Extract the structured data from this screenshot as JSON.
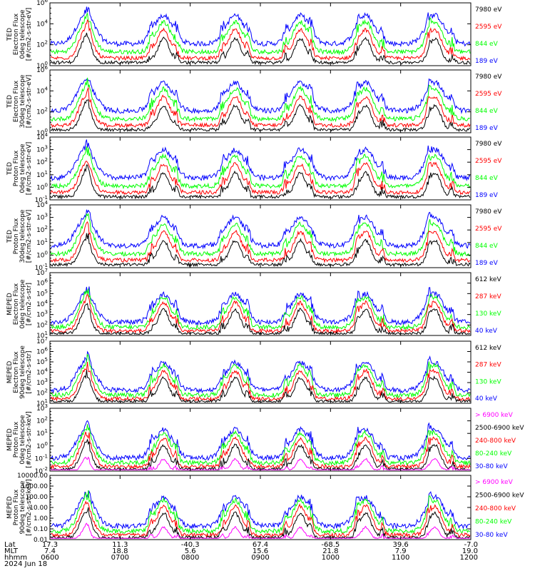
{
  "colors": {
    "blue": "#0000ff",
    "red": "#ff0000",
    "green": "#00ff00",
    "black": "#000000",
    "magenta": "#ff00ff",
    "frame": "#000000"
  },
  "chart_data": [
    {
      "type": "line",
      "ylabel_lines": [
        "TED",
        "Electron Flux",
        "0deg telescope",
        "[#/cm2-s-str-eV]"
      ],
      "yscale": "log",
      "yticks": [
        "10^0",
        "10^2",
        "10^4",
        "10^6"
      ],
      "ylim": [
        1,
        1000000
      ],
      "series": [
        {
          "name": "7980 eV",
          "color": "black"
        },
        {
          "name": "2595 eV",
          "color": "red"
        },
        {
          "name": "844 eV",
          "color": "green"
        },
        {
          "name": "189 eV",
          "color": "blue"
        }
      ]
    },
    {
      "type": "line",
      "ylabel_lines": [
        "TED",
        "Electron Flux",
        "30deg telescope",
        "[#/cm2-s-str-eV]"
      ],
      "yscale": "log",
      "yticks": [
        "10^0",
        "10^2",
        "10^4",
        "10^6"
      ],
      "ylim": [
        1,
        1000000
      ],
      "series": [
        {
          "name": "7980 eV",
          "color": "black"
        },
        {
          "name": "2595 eV",
          "color": "red"
        },
        {
          "name": "844 eV",
          "color": "green"
        },
        {
          "name": "189 eV",
          "color": "blue"
        }
      ]
    },
    {
      "type": "line",
      "ylabel_lines": [
        "TED",
        "Proton Flux",
        "0deg telescope",
        "[#/cm2-s-str-eV]"
      ],
      "yscale": "log",
      "yticks": [
        "10^-1",
        "10^0",
        "10^1",
        "10^2",
        "10^3",
        "10^4"
      ],
      "ylim": [
        0.1,
        10000
      ],
      "series": [
        {
          "name": "7980 eV",
          "color": "black"
        },
        {
          "name": "2595 eV",
          "color": "red"
        },
        {
          "name": "844 eV",
          "color": "green"
        },
        {
          "name": "189 eV",
          "color": "blue"
        }
      ]
    },
    {
      "type": "line",
      "ylabel_lines": [
        "TED",
        "Proton Flux",
        "30deg telescope",
        "[#/cm2-s-str-eV]"
      ],
      "yscale": "log",
      "yticks": [
        "10^-1",
        "10^0",
        "10^1",
        "10^2",
        "10^3",
        "10^4"
      ],
      "ylim": [
        0.1,
        10000
      ],
      "series": [
        {
          "name": "7980 eV",
          "color": "black"
        },
        {
          "name": "2595 eV",
          "color": "red"
        },
        {
          "name": "844 eV",
          "color": "green"
        },
        {
          "name": "189 eV",
          "color": "blue"
        }
      ]
    },
    {
      "type": "line",
      "ylabel_lines": [
        "MEPED",
        "Electron Flux",
        "0deg telescope",
        "[#/cm2-s-str]"
      ],
      "yscale": "log",
      "yticks": [
        "10^1",
        "10^2",
        "10^3",
        "10^4",
        "10^5",
        "10^6",
        "10^7"
      ],
      "ylim": [
        10,
        10000000
      ],
      "series": [
        {
          "name": "612 keV",
          "color": "black"
        },
        {
          "name": "287 keV",
          "color": "red"
        },
        {
          "name": "130 keV",
          "color": "green"
        },
        {
          "name": "40 keV",
          "color": "blue"
        }
      ]
    },
    {
      "type": "line",
      "ylabel_lines": [
        "MEPED",
        "Electron Flux",
        "90deg telescope",
        "[#/cm2-s-str]"
      ],
      "yscale": "log",
      "yticks": [
        "10^1",
        "10^2",
        "10^3",
        "10^4",
        "10^5",
        "10^6",
        "10^7"
      ],
      "ylim": [
        10,
        10000000
      ],
      "series": [
        {
          "name": "612 keV",
          "color": "black"
        },
        {
          "name": "287 keV",
          "color": "red"
        },
        {
          "name": "130 keV",
          "color": "green"
        },
        {
          "name": "40 keV",
          "color": "blue"
        }
      ]
    },
    {
      "type": "line",
      "ylabel_lines": [
        "MEPED",
        "Proton Flux",
        "0deg telescope",
        "[#/cm2-s-str-keV]"
      ],
      "yscale": "log",
      "yticks": [
        "10^-2",
        "10^-1",
        "10^0",
        "10^1",
        "10^2",
        "10^3"
      ],
      "ylim": [
        0.01,
        1000
      ],
      "series": [
        {
          "name": "> 6900 keV",
          "color": "magenta"
        },
        {
          "name": "2500-6900 keV",
          "color": "black"
        },
        {
          "name": "240-800 keV",
          "color": "red"
        },
        {
          "name": "80-240 keV",
          "color": "green"
        },
        {
          "name": "30-80 keV",
          "color": "blue"
        }
      ]
    },
    {
      "type": "line",
      "ylabel_lines": [
        "MEPED",
        "Proton Flux",
        "90deg telescope",
        "[#/cm2-s-str-keV]"
      ],
      "yscale": "log",
      "yticks": [
        "0.01",
        "0.10",
        "1.00",
        "10.00",
        "100.00",
        "1000.00",
        "10000.00"
      ],
      "ylim": [
        0.01,
        10000
      ],
      "series": [
        {
          "name": "> 6900 keV",
          "color": "magenta"
        },
        {
          "name": "2500-6900 keV",
          "color": "black"
        },
        {
          "name": "240-800 keV",
          "color": "red"
        },
        {
          "name": "80-240 keV",
          "color": "green"
        },
        {
          "name": "30-80 keV",
          "color": "blue"
        }
      ]
    }
  ],
  "x_axis": {
    "row_labels": [
      "Lat",
      "MLT",
      "hhmm",
      "2024 Jun 18"
    ],
    "ticks": [
      {
        "lat": "17.3",
        "mlt": "7.4",
        "hhmm": "0600"
      },
      {
        "lat": "11.3",
        "mlt": "18.8",
        "hhmm": "0700"
      },
      {
        "lat": "-40.3",
        "mlt": "5.6",
        "hhmm": "0800"
      },
      {
        "lat": "67.4",
        "mlt": "15.6",
        "hhmm": "0900"
      },
      {
        "lat": "-68.5",
        "mlt": "21.8",
        "hhmm": "1000"
      },
      {
        "lat": "39.6",
        "mlt": "7.9",
        "hhmm": "1100"
      },
      {
        "lat": "-7.0",
        "mlt": "19.0",
        "hhmm": "1200"
      }
    ]
  }
}
